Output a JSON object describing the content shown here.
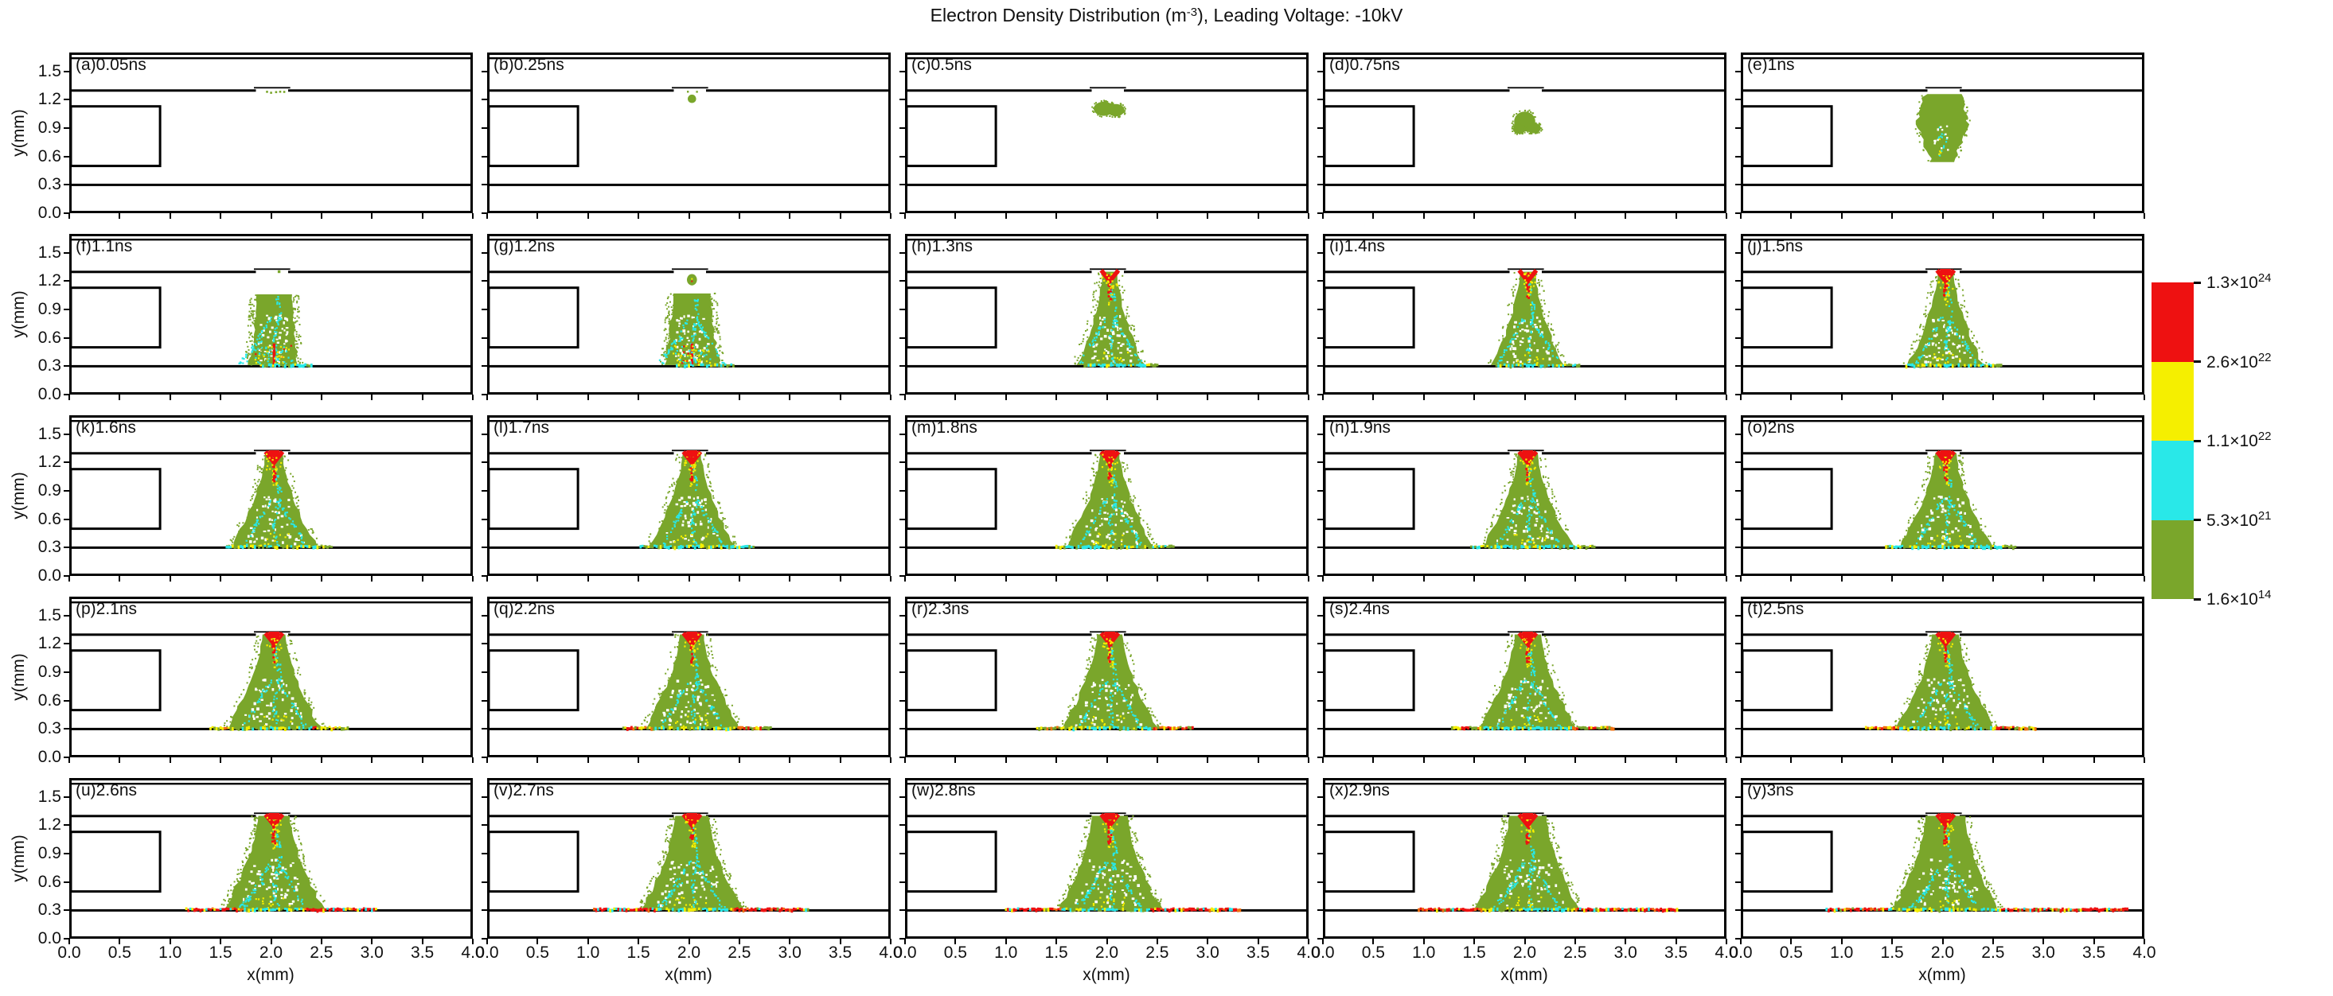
{
  "title": {
    "part1": "Electron Density Distribution (m",
    "sup": "-3",
    "part2": "), Leading Voltage: -10kV"
  },
  "chart_data": {
    "type": "heatmap",
    "layout": "5x5 time-series panels of a 2D streamer discharge simulation",
    "x_axis": {
      "label": "x(mm)",
      "ticks": [
        "0.0",
        "0.5",
        "1.0",
        "1.5",
        "2.0",
        "2.5",
        "3.0",
        "3.5",
        "4.0"
      ],
      "range": [
        0,
        4
      ]
    },
    "y_axis": {
      "label": "y(mm)",
      "ticks": [
        "0.0",
        "0.3",
        "0.6",
        "0.9",
        "1.2",
        "1.5"
      ],
      "range": [
        0,
        1.7
      ]
    },
    "colorbar": {
      "colors": [
        "#ee1111",
        "#f5ef00",
        "#29e8e8",
        "#7aa62b"
      ],
      "tick_labels": [
        {
          "m": "1.3",
          "e": "24"
        },
        {
          "m": "2.6",
          "e": "22"
        },
        {
          "m": "1.1",
          "e": "22"
        },
        {
          "m": "5.3",
          "e": "21"
        },
        {
          "m": "1.6",
          "e": "14"
        }
      ]
    },
    "fixtures": {
      "top_inner_line": true,
      "dielectric_line_y_mm": 1.3,
      "notch_x_mm": [
        1.85,
        2.17
      ],
      "surface_line_y_mm": 0.3,
      "electrode_rect_mm": {
        "x": [
          0,
          0.9
        ],
        "y": [
          0.5,
          1.13
        ]
      }
    },
    "panels": [
      {
        "tag": "(a)",
        "time": "0.05ns",
        "plasma": {
          "stage": "seed",
          "specks": [
            [
              1.96,
              1.285
            ],
            [
              2.0,
              1.275
            ],
            [
              2.05,
              1.282
            ],
            [
              2.09,
              1.286
            ],
            [
              2.13,
              1.284
            ]
          ]
        }
      },
      {
        "tag": "(b)",
        "time": "0.25ns",
        "plasma": {
          "stage": "dot",
          "cx": 2.03,
          "cy": 1.21,
          "r": 0.042,
          "specks": [
            [
              1.99,
              1.285
            ],
            [
              2.08,
              1.284
            ]
          ]
        }
      },
      {
        "tag": "(c)",
        "time": "0.5ns",
        "plasma": {
          "stage": "blob",
          "lumps": [
            [
              1.97,
              1.105,
              0.1,
              0.075
            ],
            [
              2.09,
              1.09,
              0.085,
              0.065
            ]
          ]
        }
      },
      {
        "tag": "(d)",
        "time": "0.75ns",
        "plasma": {
          "stage": "blob",
          "lumps": [
            [
              2.0,
              0.97,
              0.105,
              0.105
            ],
            [
              2.09,
              0.9,
              0.07,
              0.055
            ],
            [
              1.94,
              0.89,
              0.055,
              0.05
            ]
          ]
        }
      },
      {
        "tag": "(e)",
        "time": "1ns",
        "plasma": {
          "stage": "plume",
          "cx": 2.0,
          "profile": [
            [
              1.26,
              0.3
            ],
            [
              0.95,
              0.46
            ],
            [
              0.7,
              0.3
            ],
            [
              0.54,
              0.16
            ]
          ]
        }
      },
      {
        "tag": "(f)",
        "time": "1.1ns",
        "plasma": {
          "stage": "cone",
          "connected": false,
          "top": 1.06,
          "cx": 2.03,
          "wTop": 0.34,
          "wBase": 0.44,
          "redTop": 0,
          "branches": 1,
          "impactRed": true,
          "notchDot": [
            2.08,
            1.3
          ],
          "layer": [
            1.9,
            2.42
          ],
          "layerStyle": "mix"
        }
      },
      {
        "tag": "(g)",
        "time": "1.2ns",
        "plasma": {
          "stage": "cone",
          "connected": false,
          "top": 1.07,
          "cx": 2.03,
          "wTop": 0.36,
          "wBase": 0.5,
          "redTop": 0,
          "branches": 2,
          "impactRed": true,
          "drop": [
            2.03,
            1.215,
            0.05
          ],
          "layer": [
            1.88,
            2.46
          ],
          "layerStyle": "mix"
        }
      },
      {
        "tag": "(h)",
        "time": "1.3ns",
        "plasma": {
          "stage": "cone",
          "connected": true,
          "cx": 2.03,
          "wTop": 0.13,
          "wBase": 0.62,
          "redTop": 1,
          "branches": 2,
          "layer": [
            1.78,
            2.52
          ],
          "layerStyle": "mix"
        }
      },
      {
        "tag": "(i)",
        "time": "1.4ns",
        "plasma": {
          "stage": "cone",
          "connected": true,
          "cx": 2.03,
          "wTop": 0.14,
          "wBase": 0.66,
          "redTop": 1,
          "branches": 2,
          "layer": [
            1.72,
            2.56
          ],
          "layerStyle": "mix"
        }
      },
      {
        "tag": "(j)",
        "time": "1.5ns",
        "plasma": {
          "stage": "cone",
          "connected": true,
          "cx": 2.03,
          "wTop": 0.15,
          "wBase": 0.7,
          "redTop": 2,
          "branches": 2,
          "layer": [
            1.64,
            2.6
          ],
          "layerStyle": "mix"
        }
      },
      {
        "tag": "(k)",
        "time": "1.6ns",
        "plasma": {
          "stage": "cone",
          "connected": true,
          "cx": 2.03,
          "wTop": 0.16,
          "wBase": 0.8,
          "redTop": 2,
          "branches": 2,
          "layer": [
            1.56,
            2.62
          ],
          "layerStyle": "mix"
        }
      },
      {
        "tag": "(l)",
        "time": "1.7ns",
        "plasma": {
          "stage": "cone",
          "connected": true,
          "cx": 2.03,
          "wTop": 0.17,
          "wBase": 0.81,
          "redTop": 2,
          "branches": 2,
          "layer": [
            1.52,
            2.65
          ],
          "layerStyle": "mix"
        }
      },
      {
        "tag": "(m)",
        "time": "1.8ns",
        "plasma": {
          "stage": "cone",
          "connected": true,
          "cx": 2.03,
          "wTop": 0.18,
          "wBase": 0.82,
          "redTop": 2,
          "branches": 2,
          "layer": [
            1.5,
            2.68
          ],
          "layerStyle": "mix"
        }
      },
      {
        "tag": "(n)",
        "time": "1.9ns",
        "plasma": {
          "stage": "cone",
          "connected": true,
          "cx": 2.03,
          "wTop": 0.19,
          "wBase": 0.84,
          "redTop": 2,
          "branches": 2,
          "layer": [
            1.47,
            2.7
          ],
          "layerStyle": "mix"
        }
      },
      {
        "tag": "(o)",
        "time": "2ns",
        "plasma": {
          "stage": "cone",
          "connected": true,
          "cx": 2.03,
          "wTop": 0.2,
          "wBase": 0.86,
          "redTop": 2,
          "branches": 2,
          "layer": [
            1.44,
            2.73
          ],
          "layerStyle": "mix"
        }
      },
      {
        "tag": "(p)",
        "time": "2.1ns",
        "plasma": {
          "stage": "cone",
          "connected": true,
          "cx": 2.03,
          "wTop": 0.22,
          "wBase": 0.88,
          "redTop": 2,
          "branches": 2,
          "layer": [
            1.4,
            2.78
          ],
          "layerStyle": "warm"
        }
      },
      {
        "tag": "(q)",
        "time": "2.2ns",
        "plasma": {
          "stage": "cone",
          "connected": true,
          "cx": 2.03,
          "wTop": 0.23,
          "wBase": 0.89,
          "redTop": 2,
          "branches": 2,
          "layer": [
            1.35,
            2.82
          ],
          "layerStyle": "warm"
        }
      },
      {
        "tag": "(r)",
        "time": "2.3ns",
        "plasma": {
          "stage": "cone",
          "connected": true,
          "cx": 2.03,
          "wTop": 0.24,
          "wBase": 0.9,
          "redTop": 2,
          "branches": 2,
          "layer": [
            1.31,
            2.86
          ],
          "layerStyle": "warm"
        }
      },
      {
        "tag": "(s)",
        "time": "2.4ns",
        "plasma": {
          "stage": "cone",
          "connected": true,
          "cx": 2.03,
          "wTop": 0.25,
          "wBase": 0.91,
          "redTop": 2,
          "branches": 2,
          "layer": [
            1.28,
            2.9
          ],
          "layerStyle": "warm"
        }
      },
      {
        "tag": "(t)",
        "time": "2.5ns",
        "plasma": {
          "stage": "cone",
          "connected": true,
          "cx": 2.03,
          "wTop": 0.26,
          "wBase": 0.92,
          "redTop": 2,
          "branches": 2,
          "layer": [
            1.24,
            2.94
          ],
          "layerStyle": "warm"
        }
      },
      {
        "tag": "(u)",
        "time": "2.6ns",
        "plasma": {
          "stage": "cone",
          "connected": true,
          "cx": 2.03,
          "wTop": 0.3,
          "wBase": 0.95,
          "redTop": 2,
          "branches": 2,
          "layer": [
            1.16,
            3.06
          ],
          "layerStyle": "red"
        }
      },
      {
        "tag": "(v)",
        "time": "2.7ns",
        "plasma": {
          "stage": "cone",
          "connected": true,
          "cx": 2.03,
          "wTop": 0.32,
          "wBase": 0.96,
          "redTop": 2,
          "branches": 2,
          "layer": [
            1.06,
            3.2
          ],
          "layerStyle": "red"
        }
      },
      {
        "tag": "(w)",
        "time": "2.8ns",
        "plasma": {
          "stage": "cone",
          "connected": true,
          "cx": 2.03,
          "wTop": 0.34,
          "wBase": 0.97,
          "redTop": 2,
          "branches": 2,
          "layer": [
            1.0,
            3.34
          ],
          "layerStyle": "red"
        }
      },
      {
        "tag": "(x)",
        "time": "2.9ns",
        "plasma": {
          "stage": "cone",
          "connected": true,
          "cx": 2.03,
          "wTop": 0.36,
          "wBase": 0.98,
          "redTop": 2,
          "branches": 2,
          "layer": [
            0.95,
            3.52
          ],
          "layerStyle": "red"
        }
      },
      {
        "tag": "(y)",
        "time": "3ns",
        "plasma": {
          "stage": "cone",
          "connected": true,
          "cx": 2.03,
          "wTop": 0.38,
          "wBase": 1.0,
          "redTop": 2,
          "branches": 2,
          "layer": [
            0.85,
            3.85
          ],
          "layerStyle": "red"
        }
      }
    ]
  }
}
